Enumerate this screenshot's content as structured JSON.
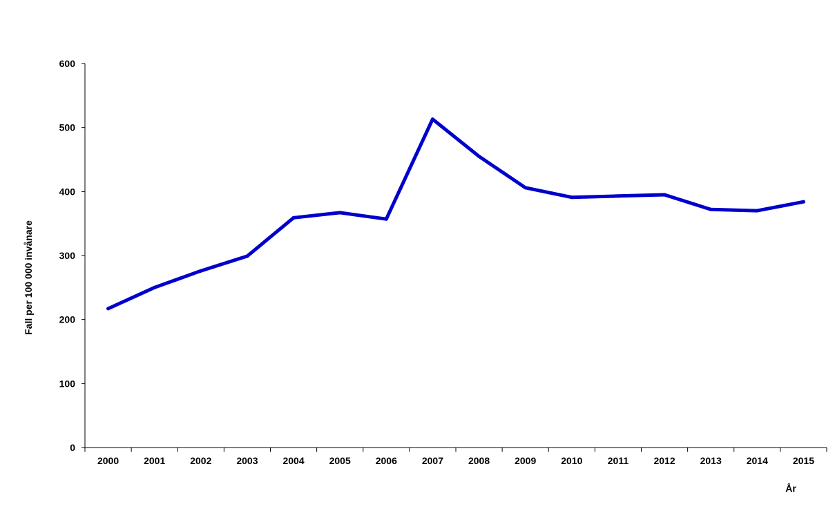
{
  "chart_data": {
    "type": "line",
    "title": "",
    "xlabel": "År",
    "ylabel": "Fall per 100 000 invånare",
    "ylim": [
      0,
      600
    ],
    "yticks": [
      0,
      100,
      200,
      300,
      400,
      500,
      600
    ],
    "grid": false,
    "legend": "none",
    "categories": [
      "2000",
      "2001",
      "2002",
      "2003",
      "2004",
      "2005",
      "2006",
      "2007",
      "2008",
      "2009",
      "2010",
      "2011",
      "2012",
      "2013",
      "2014",
      "2015"
    ],
    "series": [
      {
        "color": "#0000cc",
        "values": [
          217,
          250,
          276,
          299,
          359,
          367,
          357,
          513,
          455,
          406,
          391,
          393,
          395,
          372,
          370,
          384
        ]
      }
    ]
  }
}
